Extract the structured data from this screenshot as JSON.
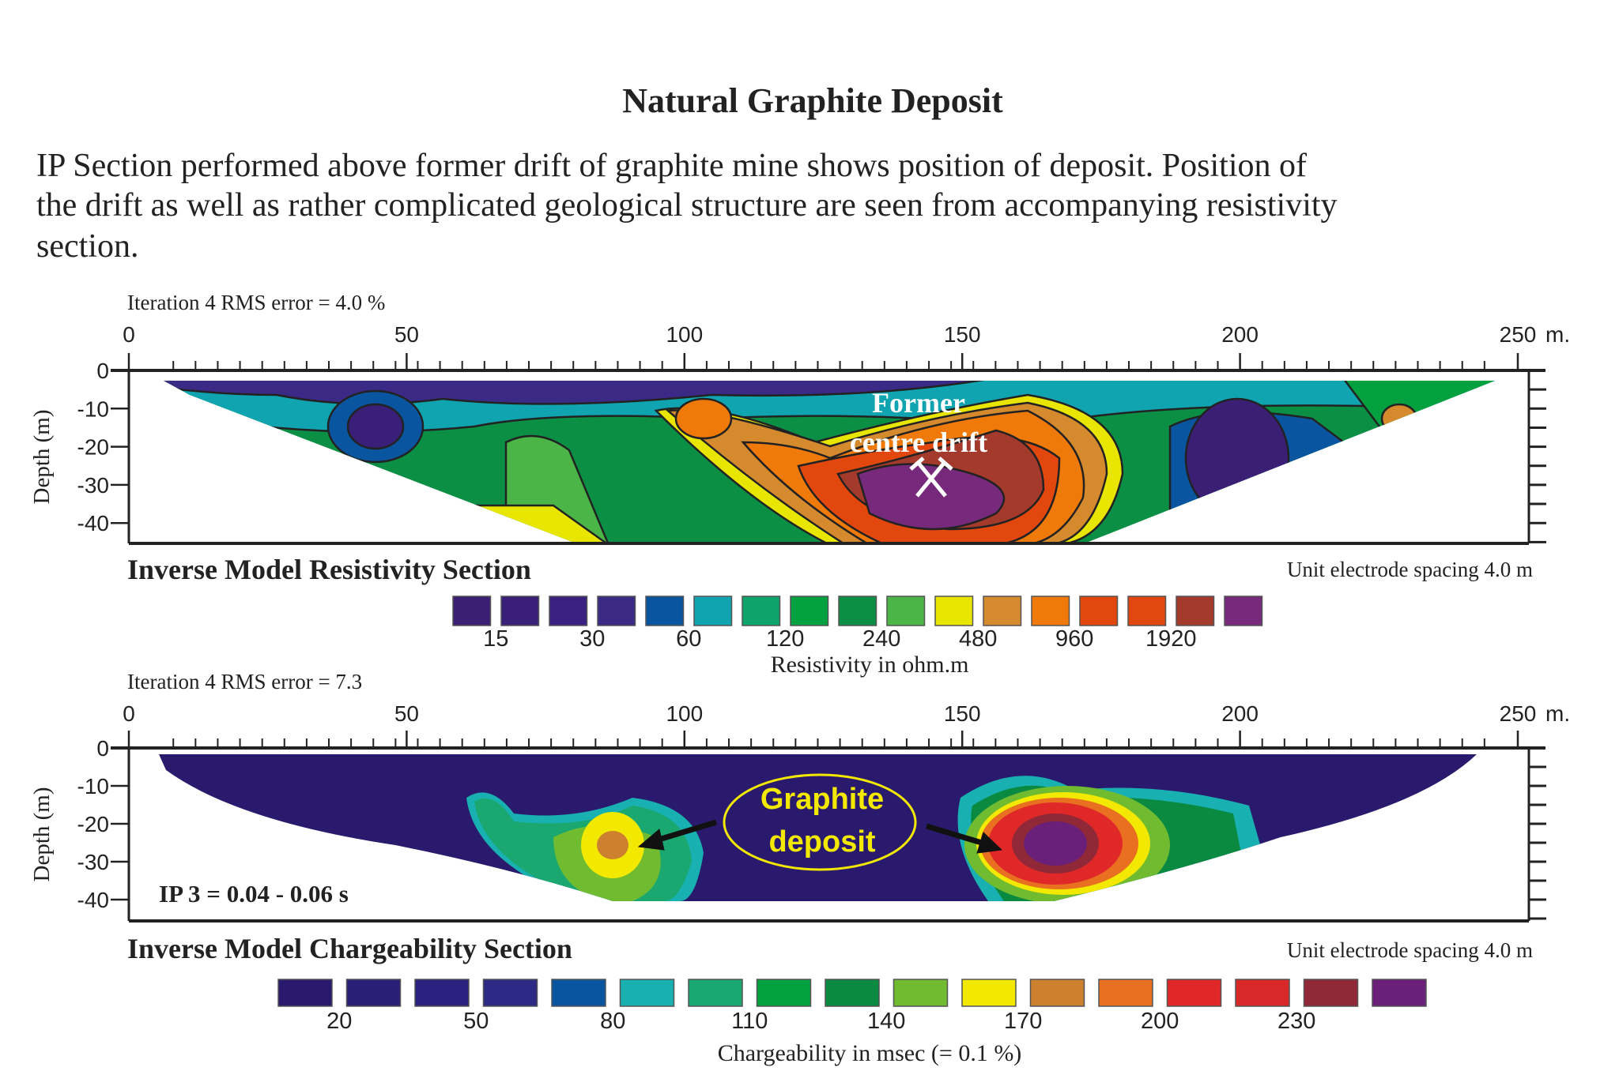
{
  "title": "Natural Graphite Deposit",
  "paragraph": [
    "IP Section performed above former drift of graphite mine shows position of deposit. Position of",
    "the drift as well as rather complicated geological structure are seen from accompanying resistivity",
    "section."
  ],
  "chart_data": [
    {
      "type": "heatmap",
      "title": "Inverse Model Resistivity Section",
      "subtitle": "Iteration 4 RMS  error = 4.0 %",
      "note": "Unit electrode spacing 4.0 m",
      "x_unit": "m.",
      "ylabel": "Depth (m)",
      "xlim": [
        0,
        250
      ],
      "ylim": [
        -46,
        0
      ],
      "x_ticks": [
        "0",
        "50",
        "100",
        "150",
        "200",
        "250"
      ],
      "y_ticks": [
        "0",
        "-10",
        "-20",
        "-30",
        "-40"
      ],
      "annotation": [
        "Former",
        "centre drift"
      ],
      "legend": {
        "title": "Resistivity in ohm.m",
        "labels": [
          "15",
          "30",
          "60",
          "120",
          "240",
          "480",
          "960",
          "1920"
        ],
        "colors": [
          "#3b1f74",
          "#3a1f78",
          "#3a2080",
          "#3b2a85",
          "#0a55a0",
          "#10a4b0",
          "#0da36a",
          "#03a040",
          "#0b8f45",
          "#4bb548",
          "#e8e600",
          "#d68a2e",
          "#ef7a0a",
          "#e2470e",
          "#e14710",
          "#a33a2b",
          "#772a7c"
        ]
      }
    },
    {
      "type": "heatmap",
      "title": "Inverse Model Chargeability Section",
      "subtitle": "Iteration 4 RMS  error = 7.3",
      "note": "Unit electrode spacing 4.0 m",
      "x_unit": "m.",
      "ylabel": "Depth (m)",
      "xlim": [
        0,
        250
      ],
      "ylim": [
        -46,
        0
      ],
      "x_ticks": [
        "0",
        "50",
        "100",
        "150",
        "200",
        "250"
      ],
      "y_ticks": [
        "0",
        "-10",
        "-20",
        "-30",
        "-40"
      ],
      "inset_label": "IP 3 = 0.04 - 0.06 s",
      "annotation": [
        "Graphite",
        "deposit"
      ],
      "legend": {
        "title": "Chargeability in msec (= 0.1 %)",
        "labels": [
          "20",
          "50",
          "80",
          "110",
          "140",
          "170",
          "200",
          "230"
        ],
        "colors": [
          "#2a1a6e",
          "#2a1f78",
          "#2b2280",
          "#2d2a85",
          "#0a55a0",
          "#18b0b0",
          "#1aa870",
          "#03a040",
          "#0a8a40",
          "#70bb30",
          "#f2e800",
          "#cc8030",
          "#e87020",
          "#e02828",
          "#d82828",
          "#902838",
          "#6a2078"
        ]
      }
    }
  ]
}
